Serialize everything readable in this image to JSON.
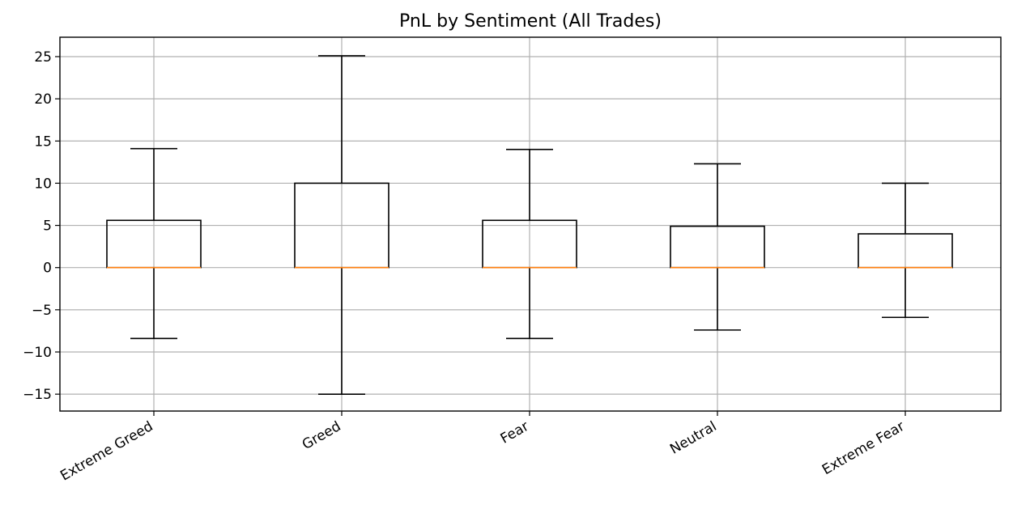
{
  "chart_data": {
    "type": "box",
    "title": "PnL by Sentiment (All Trades)",
    "xlabel": "",
    "ylabel": "",
    "ylim": [
      -17,
      27.3
    ],
    "yticks": [
      -15,
      -10,
      -5,
      0,
      5,
      10,
      15,
      20,
      25
    ],
    "ytick_labels": [
      "−15",
      "−10",
      "−5",
      "0",
      "5",
      "10",
      "15",
      "20",
      "25"
    ],
    "grid": true,
    "categories": [
      "Extreme Greed",
      "Greed",
      "Fear",
      "Neutral",
      "Extreme Fear"
    ],
    "boxes": [
      {
        "category": "Extreme Greed",
        "whisker_low": -8.4,
        "q1": 0,
        "median": 0,
        "q3": 5.6,
        "whisker_high": 14.1
      },
      {
        "category": "Greed",
        "whisker_low": -15.0,
        "q1": 0,
        "median": 0,
        "q3": 10.0,
        "whisker_high": 25.1
      },
      {
        "category": "Fear",
        "whisker_low": -8.4,
        "q1": 0,
        "median": 0,
        "q3": 5.6,
        "whisker_high": 14.0
      },
      {
        "category": "Neutral",
        "whisker_low": -7.4,
        "q1": 0,
        "median": 0,
        "q3": 4.9,
        "whisker_high": 12.3
      },
      {
        "category": "Extreme Fear",
        "whisker_low": -5.9,
        "q1": 0,
        "median": 0,
        "q3": 4.0,
        "whisker_high": 10.0
      }
    ],
    "colors": {
      "box": "#000000",
      "median": "#ff7f0e",
      "grid": "#b0b0b0"
    }
  }
}
